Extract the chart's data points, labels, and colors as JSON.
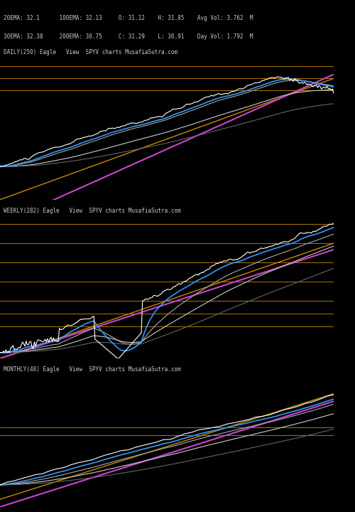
{
  "bg_color": "#000000",
  "text_color": "#cccccc",
  "orange_color": "#cc8800",
  "blue_color": "#3399ff",
  "magenta_color": "#cc44cc",
  "white_color": "#ffffff",
  "header_text": [
    "20EMA: 32.1      100EMA: 32.13     O: 31.12    H: 31.85    Avg Vol: 3.762  M",
    "30EMA: 32.38     200EMA: 30.75     C: 31.29    L: 30.91    Day Vol: 1.792  M"
  ],
  "panel1_label": "DAILY(250) Eagle   View  SPYV charts MusafiaSutra.com",
  "panel2_label": "WEEKLY(282) Eagle   View  SPYV charts MusafiaSutra.com",
  "panel3_label": "MONTHLY(48) Eagle   View  SPYV charts MusafiaSutra.com",
  "panel1_hlines": [
    53.0,
    50.0,
    47.0
  ],
  "panel2_hlines": [
    54.0,
    51.0,
    48.0,
    45.0,
    42.0,
    40.0,
    38.0
  ],
  "panel3_hlines": [
    41.0,
    39.0
  ],
  "panel1_ylim": [
    20,
    58
  ],
  "panel2_ylim": [
    33,
    57
  ],
  "panel3_ylim": [
    20,
    58
  ]
}
